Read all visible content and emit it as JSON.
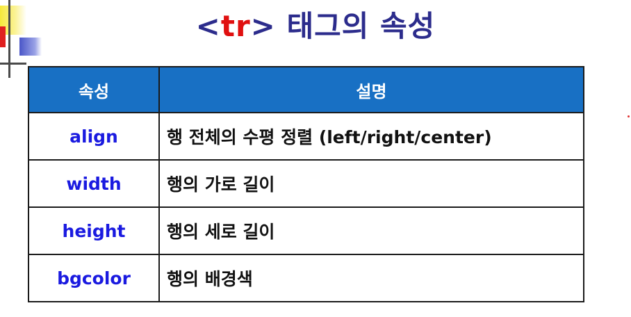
{
  "title": {
    "open_bracket": "<",
    "tag": "tr",
    "close_bracket": ">",
    "rest": " 태그의 속성"
  },
  "table": {
    "headers": [
      "속성",
      "설명"
    ],
    "rows": [
      {
        "name": "align",
        "desc": "행 전체의 수평 정렬 (left/right/center)"
      },
      {
        "name": "width",
        "desc": "행의 가로 길이"
      },
      {
        "name": "height",
        "desc": "행의 세로 길이"
      },
      {
        "name": "bgcolor",
        "desc": "행의 배경색"
      }
    ]
  },
  "colors": {
    "header_bg": "#1870c4",
    "title_text": "#2c2c8c",
    "tag_text": "#e01010",
    "attr_name_text": "#1a1ae0"
  }
}
